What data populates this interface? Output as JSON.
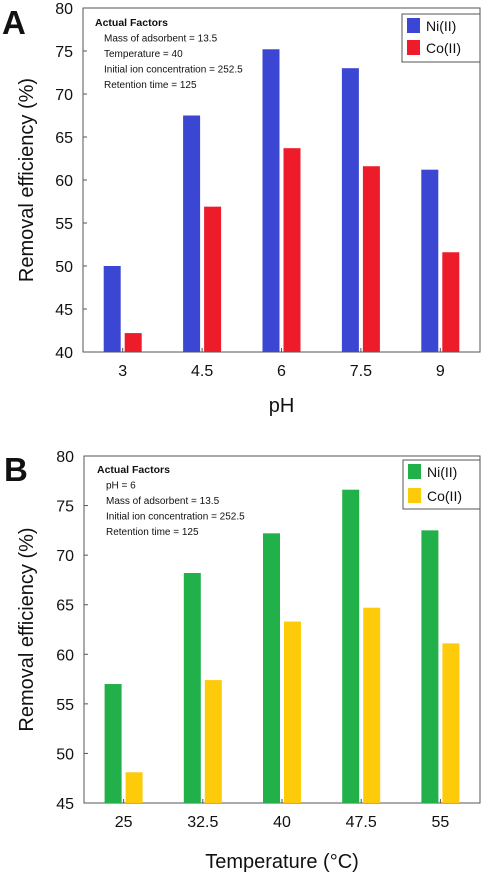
{
  "chart_data": [
    {
      "panel_label": "A",
      "type": "bar",
      "categories": [
        "3",
        "4.5",
        "6",
        "7.5",
        "9"
      ],
      "series": [
        {
          "name": "Ni(II)",
          "color": "#3b47d3",
          "values": [
            50.0,
            67.5,
            75.2,
            73.0,
            61.2
          ]
        },
        {
          "name": "Co(II)",
          "color": "#ee1c2a",
          "values": [
            42.2,
            56.9,
            63.7,
            61.6,
            51.6
          ]
        }
      ],
      "ylim": [
        40,
        80
      ],
      "yticks": [
        "40",
        "45",
        "50",
        "55",
        "60",
        "65",
        "70",
        "75",
        "80"
      ],
      "xlabel": "pH",
      "ylabel": "Removal efficiency  (%)",
      "legend_position": "top-right",
      "annotation": {
        "title": "Actual Factors",
        "lines": [
          "Mass of adsorbent = 13.5",
          "Temperature = 40",
          "Initial ion concentration = 252.5",
          "Retention time = 125"
        ]
      }
    },
    {
      "panel_label": "B",
      "type": "bar",
      "categories": [
        "25",
        "32.5",
        "40",
        "47.5",
        "55"
      ],
      "series": [
        {
          "name": "Ni(II)",
          "color": "#22b04b",
          "values": [
            57.0,
            68.2,
            72.2,
            76.6,
            72.5
          ]
        },
        {
          "name": "Co(II)",
          "color": "#fecb0a",
          "values": [
            48.1,
            57.4,
            63.3,
            64.7,
            61.1
          ]
        }
      ],
      "ylim": [
        45,
        80
      ],
      "yticks": [
        "45",
        "50",
        "55",
        "60",
        "65",
        "70",
        "75",
        "80"
      ],
      "xlabel": "Temperature (°C)",
      "ylabel": "Removal efficiency  (%)",
      "legend_position": "top-right",
      "annotation": {
        "title": "Actual Factors",
        "lines": [
          "pH = 6",
          "Mass of adsorbent = 13.5",
          "Initial ion concentration = 252.5",
          "Retention time = 125"
        ]
      }
    }
  ]
}
